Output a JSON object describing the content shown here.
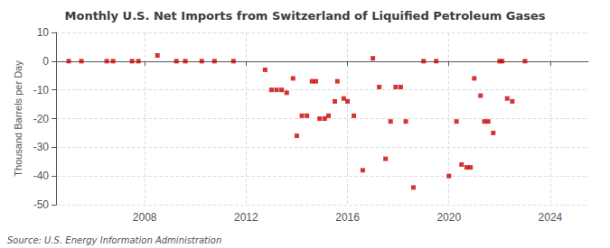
{
  "chart_data": {
    "type": "scatter",
    "title": "Monthly U.S. Net Imports from Switzerland of Liquified Petroleum Gases",
    "ylabel": "Thousand Barrels per Day",
    "annotation": "Source: U.S. Energy Information Administration",
    "x": [
      2005.0,
      2005.5,
      2006.5,
      2006.75,
      2007.5,
      2007.75,
      2008.5,
      2009.25,
      2009.6,
      2010.25,
      2010.75,
      2011.5,
      2012.75,
      2013.0,
      2013.2,
      2013.4,
      2013.6,
      2013.85,
      2014.0,
      2014.2,
      2014.4,
      2014.6,
      2014.75,
      2014.9,
      2015.1,
      2015.25,
      2015.5,
      2015.6,
      2015.85,
      2016.0,
      2016.25,
      2016.6,
      2017.0,
      2017.25,
      2017.5,
      2017.7,
      2017.9,
      2018.1,
      2018.3,
      2018.6,
      2019.0,
      2019.5,
      2020.0,
      2020.3,
      2020.5,
      2020.7,
      2020.85,
      2021.0,
      2021.25,
      2021.4,
      2021.55,
      2021.75,
      2022.0,
      2022.1,
      2022.3,
      2022.5,
      2023.0
    ],
    "values": [
      0,
      0,
      0,
      0,
      0,
      0,
      2,
      0,
      0,
      0,
      0,
      0,
      -3,
      -10,
      -10,
      -10,
      -11,
      -6,
      -26,
      -19,
      -19,
      -7,
      -7,
      -20,
      -20,
      -19,
      -14,
      -7,
      -13,
      -14,
      -19,
      -38,
      1,
      -9,
      -34,
      -21,
      -9,
      -9,
      -21,
      -44,
      0,
      0,
      -40,
      -21,
      -36,
      -37,
      -37,
      -6,
      -12,
      -21,
      -21,
      -25,
      0,
      0,
      -13,
      -14,
      0
    ],
    "color": "#cc0000",
    "marker": "square",
    "xlim": [
      2004.5,
      2025.5
    ],
    "xticks": [
      2008,
      2012,
      2016,
      2020,
      2024
    ],
    "ylim": [
      -50,
      10
    ],
    "yticks": [
      -50,
      -40,
      -30,
      -20,
      -10,
      0,
      10
    ],
    "grid": true
  }
}
